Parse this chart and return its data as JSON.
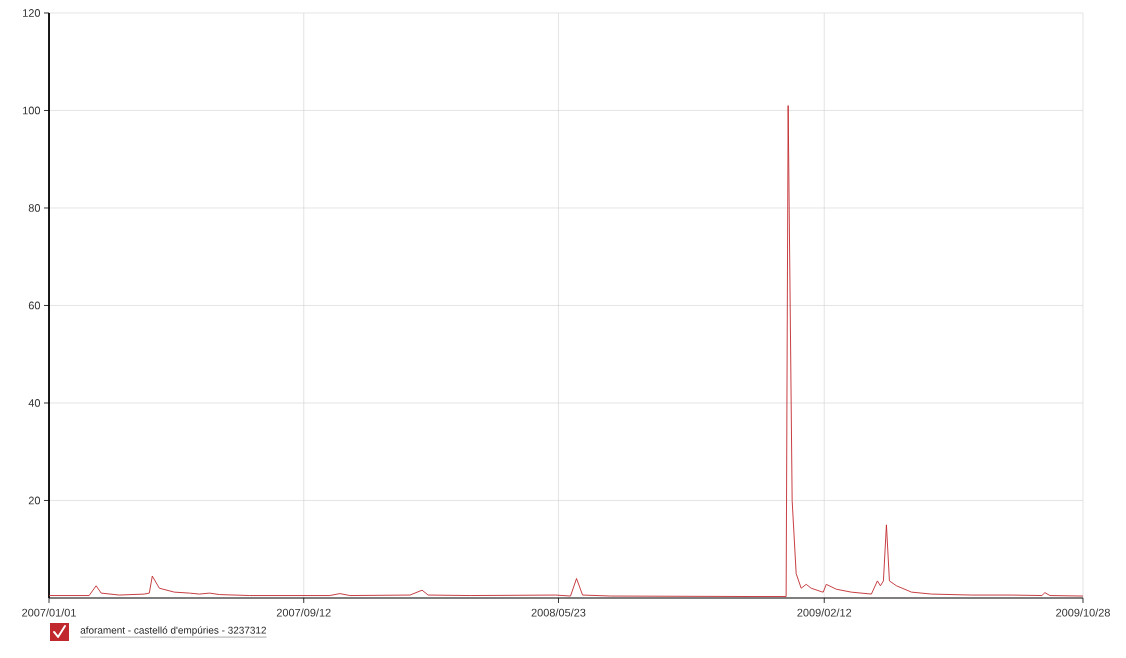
{
  "chart_data": {
    "type": "line",
    "x": [
      "2007-01-01",
      "2007-02-10",
      "2007-02-17",
      "2007-02-22",
      "2007-03-12",
      "2007-04-06",
      "2007-04-11",
      "2007-04-14",
      "2007-04-21",
      "2007-05-06",
      "2007-05-21",
      "2007-05-31",
      "2007-06-10",
      "2007-06-20",
      "2007-07-20",
      "2007-10-08",
      "2007-10-18",
      "2007-10-28",
      "2007-12-27",
      "2008-01-08",
      "2008-01-14",
      "2008-02-25",
      "2008-05-20",
      "2008-06-04",
      "2008-06-10",
      "2008-06-16",
      "2008-07-14",
      "2008-12-01",
      "2008-12-31",
      "2009-01-05",
      "2009-01-07",
      "2009-01-11",
      "2009-01-15",
      "2009-01-20",
      "2009-01-25",
      "2009-01-30",
      "2009-02-09",
      "2009-02-11",
      "2009-02-14",
      "2009-02-24",
      "2009-03-11",
      "2009-03-31",
      "2009-04-06",
      "2009-04-09",
      "2009-04-12",
      "2009-04-15",
      "2009-04-18",
      "2009-04-25",
      "2009-05-10",
      "2009-05-30",
      "2009-07-09",
      "2009-08-18",
      "2009-09-17",
      "2009-09-20",
      "2009-09-25",
      "2009-10-28"
    ],
    "series": [
      {
        "name": "aforament - castelló d'empúries - 3237312",
        "color": "#c0282d",
        "values": [
          0.5,
          0.5,
          2.5,
          1,
          0.6,
          0.8,
          1.0,
          4.5,
          2,
          1.2,
          1.0,
          0.8,
          1.0,
          0.7,
          0.5,
          0.5,
          0.9,
          0.5,
          0.6,
          1.6,
          0.6,
          0.5,
          0.6,
          0.4,
          4,
          0.6,
          0.4,
          0.3,
          0.3,
          0.3,
          101,
          20,
          5,
          2,
          2.8,
          2,
          1.3,
          1.2,
          2.8,
          1.8,
          1.2,
          0.8,
          3.5,
          2.5,
          3.5,
          15,
          3.5,
          2.5,
          1.2,
          0.8,
          0.6,
          0.6,
          0.5,
          1.1,
          0.5,
          0.4
        ]
      }
    ],
    "xlim": [
      "2007-01-01",
      "2009-10-28"
    ],
    "xticks": [
      {
        "value": "2007-01-01",
        "label": "2007/01/01"
      },
      {
        "value": "2007-09-12",
        "label": "2007/09/12"
      },
      {
        "value": "2008-05-23",
        "label": "2008/05/23"
      },
      {
        "value": "2009-02-12",
        "label": "2009/02/12"
      },
      {
        "value": "2009-10-28",
        "label": "2009/10/28"
      }
    ],
    "ylim": [
      0,
      120
    ],
    "yticks": [
      20,
      40,
      60,
      80,
      100,
      120
    ],
    "grid": true,
    "legend": "bottom left",
    "line_style": "solid"
  }
}
